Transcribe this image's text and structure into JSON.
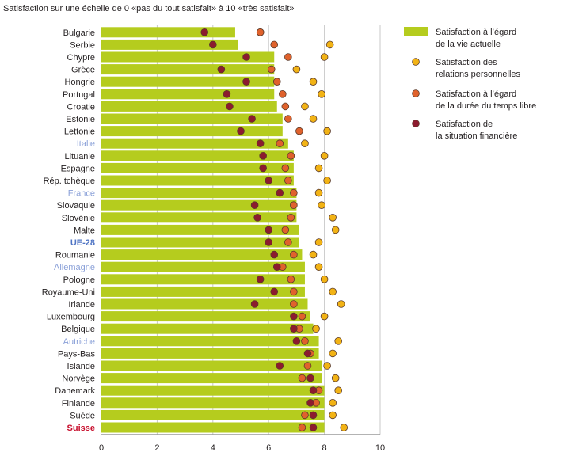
{
  "chart_data": {
    "type": "bar",
    "orientation": "horizontal",
    "title": "Satisfaction sur une échelle de 0 «pas du tout satisfait» à 10 «très satisfait»",
    "xlim": [
      0,
      10
    ],
    "xticks": [
      0,
      2,
      4,
      6,
      8,
      10
    ],
    "grid": "vertical",
    "legend_position": "right",
    "categories": [
      "Bulgarie",
      "Serbie",
      "Chypre",
      "Grèce",
      "Hongrie",
      "Portugal",
      "Croatie",
      "Estonie",
      "Lettonie",
      "Italie",
      "Lituanie",
      "Espagne",
      "Rép. tchèque",
      "France",
      "Slovaquie",
      "Slovénie",
      "Malte",
      "UE-28",
      "Roumanie",
      "Allemagne",
      "Pologne",
      "Royaume-Uni",
      "Irlande",
      "Luxembourg",
      "Belgique",
      "Autriche",
      "Pays-Bas",
      "Islande",
      "Norvège",
      "Danemark",
      "Finlande",
      "Suède",
      "Suisse"
    ],
    "category_styles": {
      "Italie": "neighbor",
      "France": "neighbor",
      "Allemagne": "neighbor",
      "Autriche": "neighbor",
      "UE-28": "eu",
      "Suisse": "ch"
    },
    "series": [
      {
        "name": "Satisfaction à l'égard de la vie actuelle",
        "legend_lines": [
          "Satisfaction à l’égard",
          "de la vie actuelle"
        ],
        "kind": "bar",
        "color": "#b5cc1e",
        "values": [
          4.8,
          4.9,
          6.2,
          6.2,
          6.2,
          6.2,
          6.3,
          6.5,
          6.5,
          6.7,
          6.9,
          6.9,
          6.9,
          7.0,
          7.0,
          7.0,
          7.1,
          7.1,
          7.2,
          7.3,
          7.3,
          7.3,
          7.4,
          7.5,
          7.6,
          7.8,
          7.8,
          7.9,
          7.9,
          8.0,
          8.0,
          8.0,
          8.0
        ]
      },
      {
        "name": "Satisfaction des relations personnelles",
        "legend_lines": [
          "Satisfaction des",
          "relations personnelles"
        ],
        "kind": "dot",
        "color": "#f2b315",
        "values": [
          5.7,
          8.2,
          8.0,
          7.0,
          7.6,
          7.9,
          7.3,
          7.6,
          8.1,
          7.3,
          8.0,
          7.8,
          8.1,
          7.8,
          7.9,
          8.3,
          8.4,
          7.8,
          7.6,
          7.8,
          8.0,
          8.3,
          8.6,
          8.0,
          7.7,
          8.5,
          8.3,
          8.1,
          8.4,
          8.5,
          8.3,
          8.3,
          8.7
        ]
      },
      {
        "name": "Satisfaction à l'égard de la durée du temps libre",
        "legend_lines": [
          "Satisfaction à l’égard",
          "de la durée du temps libre"
        ],
        "kind": "dot",
        "color": "#e0622c",
        "values": [
          5.7,
          6.2,
          6.7,
          6.1,
          6.3,
          6.5,
          6.6,
          6.7,
          7.1,
          6.4,
          6.8,
          6.6,
          6.7,
          6.9,
          6.9,
          6.8,
          6.6,
          6.7,
          6.9,
          6.5,
          6.8,
          6.9,
          6.9,
          7.2,
          7.1,
          7.3,
          7.5,
          7.4,
          7.2,
          7.8,
          7.7,
          7.3,
          7.2
        ]
      },
      {
        "name": "Satisfaction de la situation financière",
        "legend_lines": [
          "Satisfaction de",
          "la situation financière"
        ],
        "kind": "dot",
        "color": "#8c1b2e",
        "values": [
          3.7,
          4.0,
          5.2,
          4.3,
          5.2,
          4.5,
          4.6,
          5.4,
          5.0,
          5.7,
          5.8,
          5.8,
          6.0,
          6.4,
          5.5,
          5.6,
          6.0,
          6.0,
          6.2,
          6.3,
          5.7,
          6.2,
          5.5,
          6.9,
          6.9,
          7.0,
          7.4,
          6.4,
          7.5,
          7.6,
          7.5,
          7.6,
          7.6
        ]
      }
    ]
  },
  "colors": {
    "category_default": "#231f20",
    "category_neighbor": "#8aa0d8",
    "category_eu": "#4f74c4",
    "category_ch": "#c8102e",
    "grid": "#c8c8c8",
    "marker_stroke": "#5a3a2a"
  }
}
